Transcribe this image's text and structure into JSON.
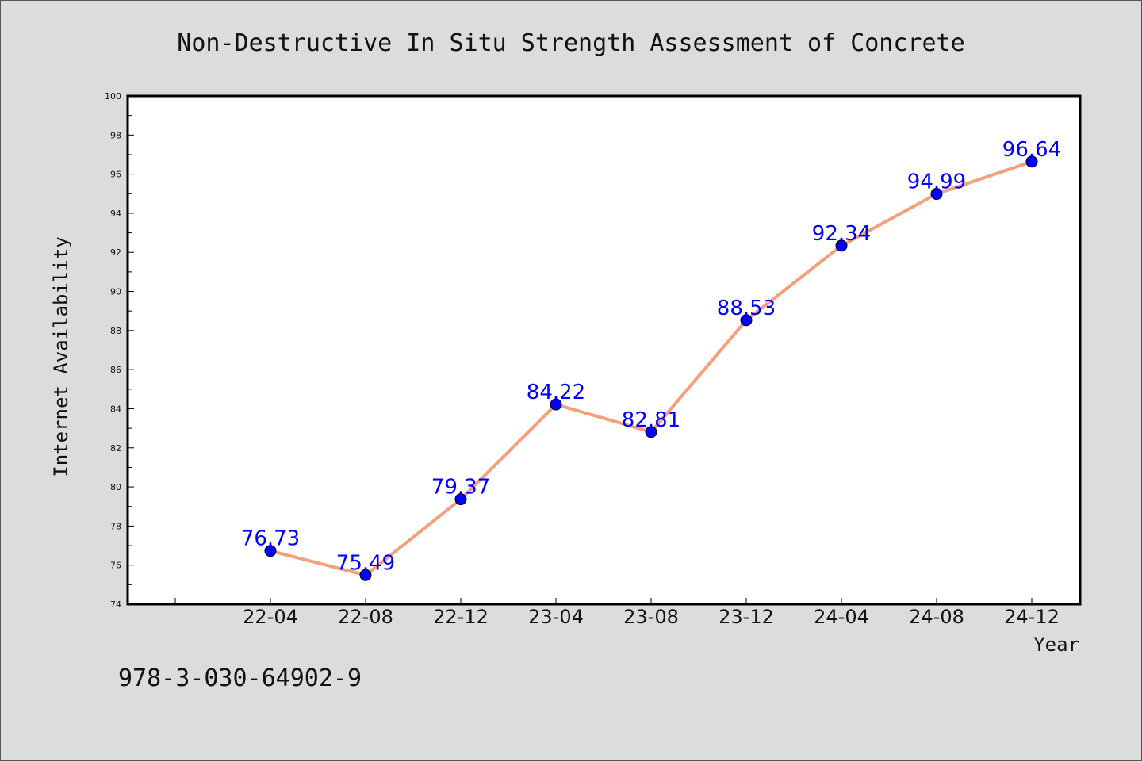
{
  "chart_data": {
    "type": "line",
    "title": "Non-Destructive In Situ Strength Assessment of Concrete",
    "xlabel": "Year",
    "ylabel": "Internet Availability",
    "ylim": [
      74,
      100
    ],
    "yticks": [
      74,
      76,
      78,
      80,
      82,
      84,
      86,
      88,
      90,
      92,
      94,
      96,
      98,
      100
    ],
    "categories": [
      "22-04",
      "22-08",
      "22-12",
      "23-04",
      "23-08",
      "23-12",
      "24-04",
      "24-08",
      "24-12"
    ],
    "series": [
      {
        "values": [
          76.73,
          75.49,
          79.37,
          84.22,
          82.81,
          88.53,
          92.34,
          94.99,
          96.64
        ],
        "line_color": "#f4a07a",
        "marker_color": "#0000ff"
      }
    ],
    "data_labels": [
      "76.73",
      "75.49",
      "79.37",
      "84.22",
      "82.81",
      "88.53",
      "92.34",
      "94.99",
      "96.64"
    ],
    "grid": false,
    "legend": "none"
  },
  "footnote": "978-3-030-64902-9"
}
